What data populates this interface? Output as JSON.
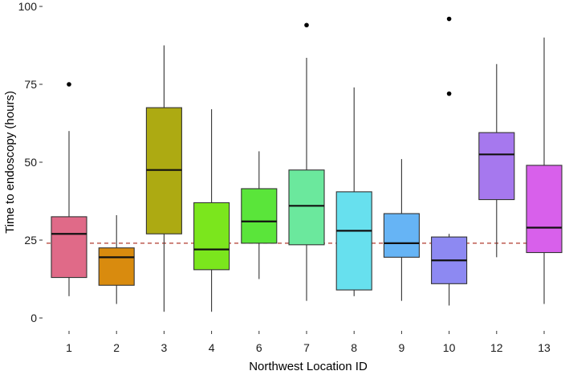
{
  "chart_data": {
    "type": "boxplot",
    "xlabel": "Northwest Location ID",
    "ylabel": "Time to endoscopy (hours)",
    "ylim": [
      0,
      100
    ],
    "yticks": [
      "0",
      "25",
      "50",
      "75",
      "100"
    ],
    "reference_line": {
      "y": 24,
      "style": "dashed",
      "color": "#b03a2e"
    },
    "grid": false,
    "legend": "none",
    "categories": [
      "1",
      "2",
      "3",
      "4",
      "6",
      "7",
      "8",
      "9",
      "10",
      "12",
      "13"
    ],
    "boxes": [
      {
        "label": "1",
        "min": 7,
        "q1": 13,
        "median": 27,
        "q3": 32.5,
        "max": 60,
        "outliers": [
          75
        ],
        "color": "#E06A88"
      },
      {
        "label": "2",
        "min": 4.5,
        "q1": 10.5,
        "median": 19.5,
        "q3": 22.5,
        "max": 33,
        "outliers": [],
        "color": "#D98B0E"
      },
      {
        "label": "3",
        "min": 2,
        "q1": 27,
        "median": 47.5,
        "q3": 67.5,
        "max": 87.5,
        "outliers": [],
        "color": "#ADAA12"
      },
      {
        "label": "4",
        "min": 2,
        "q1": 15.5,
        "median": 22,
        "q3": 37,
        "max": 67,
        "outliers": [],
        "color": "#7BE61D"
      },
      {
        "label": "6",
        "min": 12.5,
        "q1": 24,
        "median": 31,
        "q3": 41.5,
        "max": 53.5,
        "outliers": [],
        "color": "#5AE53A"
      },
      {
        "label": "7",
        "min": 5.5,
        "q1": 23.5,
        "median": 36,
        "q3": 47.5,
        "max": 83.5,
        "outliers": [
          94
        ],
        "color": "#6BE89D"
      },
      {
        "label": "8",
        "min": 7,
        "q1": 9,
        "median": 28,
        "q3": 40.5,
        "max": 74,
        "outliers": [],
        "color": "#67E0EE"
      },
      {
        "label": "9",
        "min": 5.5,
        "q1": 19.5,
        "median": 24,
        "q3": 33.5,
        "max": 51,
        "outliers": [],
        "color": "#66B4F5"
      },
      {
        "label": "10",
        "min": 4,
        "q1": 11,
        "median": 18.5,
        "q3": 26,
        "max": 27,
        "outliers": [
          72,
          96
        ],
        "color": "#8D89F2"
      },
      {
        "label": "12",
        "min": 19.5,
        "q1": 38,
        "median": 52.5,
        "q3": 59.5,
        "max": 81.5,
        "outliers": [],
        "color": "#A678EE"
      },
      {
        "label": "13",
        "min": 4.5,
        "q1": 21,
        "median": 29,
        "q3": 49,
        "max": 90,
        "outliers": [],
        "color": "#D860EB"
      }
    ]
  }
}
